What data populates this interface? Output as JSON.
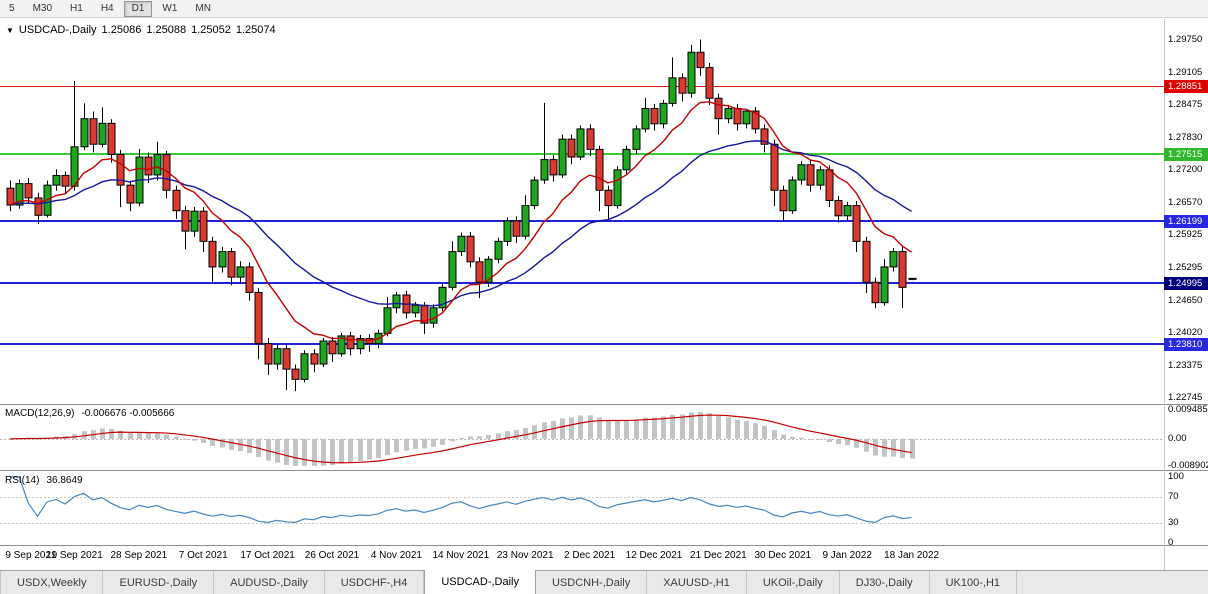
{
  "icons": {
    "chart_dropdown": "▼"
  },
  "toolbar": {
    "timeframes": [
      {
        "label": "5",
        "active": false
      },
      {
        "label": "M30",
        "active": false
      },
      {
        "label": "H1",
        "active": false
      },
      {
        "label": "H4",
        "active": false
      },
      {
        "label": "D1",
        "active": true
      },
      {
        "label": "W1",
        "active": false
      },
      {
        "label": "MN",
        "active": false
      }
    ]
  },
  "chart": {
    "symbol": "USDCAD-,Daily",
    "quote": {
      "open": "1.25086",
      "high": "1.25088",
      "low": "1.25052",
      "close": "1.25074"
    },
    "price_axis": {
      "ticks": [
        "1.29750",
        "1.29105",
        "1.28475",
        "1.27830",
        "1.27200",
        "1.26570",
        "1.25925",
        "1.25295",
        "1.24650",
        "1.24020",
        "1.23375",
        "1.22745"
      ]
    },
    "levels": [
      {
        "label": "1.28851",
        "line_color": "#ee1111",
        "badge_color": "#e00000",
        "width": 1
      },
      {
        "label": "1.27515",
        "line_color": "#35cc35",
        "badge_color": "#2eb82e",
        "width": 2
      },
      {
        "label": "1.26199",
        "line_color": "#2121d6",
        "badge_color": "#2828e0",
        "width": 2
      },
      {
        "label": "1.24995",
        "line_color": "#2121d6",
        "badge_color": "#00007f",
        "width": 2
      },
      {
        "label": "1.23810",
        "line_color": "#2121d6",
        "badge_color": "#2828e0",
        "width": 2
      }
    ],
    "colors": {
      "candle_up": "#1fa51f",
      "candle_down": "#dc3a30",
      "candle_outline": "#000000",
      "ma_fast": "#c40000",
      "ma_slow": "#16169a",
      "macd_histogram": "#c4c4c4",
      "macd_signal": "#c40000",
      "rsi_line": "#4787be"
    }
  },
  "macd": {
    "name": "MACD(12,26,9)",
    "values_text": "-0.006676 -0.005666",
    "axis": [
      "0.009485",
      "0.00",
      "-0.008902"
    ]
  },
  "rsi": {
    "name": "RSI(14)",
    "value": "36.8649",
    "axis": [
      "100",
      "70",
      "30",
      "0"
    ],
    "levels": [
      70,
      30
    ]
  },
  "dates": {
    "step": 7,
    "labels": [
      "9 Sep 2021",
      "19 Sep 2021",
      "28 Sep 2021",
      "7 Oct 2021",
      "17 Oct 2021",
      "26 Oct 2021",
      "4 Nov 2021",
      "14 Nov 2021",
      "23 Nov 2021",
      "2 Dec 2021",
      "12 Dec 2021",
      "21 Dec 2021",
      "30 Dec 2021",
      "9 Jan 2022",
      "18 Jan 2022"
    ]
  },
  "tabs": [
    {
      "label": "USDX,Weekly",
      "active": false
    },
    {
      "label": "EURUSD-,Daily",
      "active": false
    },
    {
      "label": "AUDUSD-,Daily",
      "active": false
    },
    {
      "label": "USDCHF-,H4",
      "active": false
    },
    {
      "label": "USDCAD-,Daily",
      "active": true
    },
    {
      "label": "USDCNH-,Daily",
      "active": false
    },
    {
      "label": "XAUUSD-,H1",
      "active": false
    },
    {
      "label": "UKOil-,Daily",
      "active": false
    },
    {
      "label": "DJ30-,Daily",
      "active": false
    },
    {
      "label": "UK100-,H1",
      "active": false
    }
  ],
  "chart_data": {
    "type": "candlestick",
    "symbol": "USDCAD",
    "timeframe": "Daily",
    "ylim": [
      1.22745,
      1.2975
    ],
    "hlines": [
      1.28851,
      1.27515,
      1.26199,
      1.24995,
      1.2381
    ],
    "overlays": [
      {
        "name": "ma-fast",
        "type": "ema",
        "period": 10,
        "color": "#c40000"
      },
      {
        "name": "ma-slow",
        "type": "ema",
        "period": 26,
        "color": "#16169a"
      }
    ],
    "indicators": [
      {
        "name": "MACD",
        "params": [
          12,
          26,
          9
        ],
        "current": [
          -0.006676,
          -0.005666
        ],
        "scale": [
          -0.008902,
          0.009485
        ]
      },
      {
        "name": "RSI",
        "params": [
          14
        ],
        "current": 36.8649,
        "scale": [
          0,
          100
        ]
      }
    ],
    "ohlc": [
      [
        1.2685,
        1.27,
        1.264,
        1.2652
      ],
      [
        1.2652,
        1.2702,
        1.2645,
        1.2694
      ],
      [
        1.2694,
        1.2705,
        1.2655,
        1.2666
      ],
      [
        1.2666,
        1.2676,
        1.2615,
        1.2632
      ],
      [
        1.2632,
        1.27,
        1.2628,
        1.2691
      ],
      [
        1.2691,
        1.2722,
        1.268,
        1.271
      ],
      [
        1.271,
        1.2718,
        1.2675,
        1.2689
      ],
      [
        1.2689,
        1.2895,
        1.268,
        1.2766
      ],
      [
        1.2766,
        1.2851,
        1.276,
        1.2821
      ],
      [
        1.2821,
        1.2835,
        1.2755,
        1.2771
      ],
      [
        1.2771,
        1.2843,
        1.2765,
        1.2812
      ],
      [
        1.2812,
        1.282,
        1.2735,
        1.2751
      ],
      [
        1.2751,
        1.276,
        1.2648,
        1.2691
      ],
      [
        1.2691,
        1.27,
        1.264,
        1.2656
      ],
      [
        1.2656,
        1.2762,
        1.265,
        1.2746
      ],
      [
        1.2746,
        1.2755,
        1.2695,
        1.2711
      ],
      [
        1.2711,
        1.2776,
        1.27,
        1.2751
      ],
      [
        1.2751,
        1.2758,
        1.2665,
        1.2681
      ],
      [
        1.2681,
        1.269,
        1.2625,
        1.2641
      ],
      [
        1.2641,
        1.265,
        1.2565,
        1.2601
      ],
      [
        1.2601,
        1.2648,
        1.259,
        1.264
      ],
      [
        1.264,
        1.2648,
        1.256,
        1.2581
      ],
      [
        1.2581,
        1.259,
        1.25,
        1.2531
      ],
      [
        1.2531,
        1.257,
        1.252,
        1.2561
      ],
      [
        1.2561,
        1.2568,
        1.2495,
        1.2511
      ],
      [
        1.2511,
        1.2542,
        1.25,
        1.2531
      ],
      [
        1.2531,
        1.254,
        1.2465,
        1.2481
      ],
      [
        1.2481,
        1.249,
        1.235,
        1.2381
      ],
      [
        1.2381,
        1.2392,
        1.232,
        1.2341
      ],
      [
        1.2341,
        1.238,
        1.233,
        1.2371
      ],
      [
        1.2371,
        1.2378,
        1.229,
        1.2331
      ],
      [
        1.2331,
        1.234,
        1.2288,
        1.2311
      ],
      [
        1.2311,
        1.2368,
        1.2305,
        1.2361
      ],
      [
        1.2361,
        1.237,
        1.2325,
        1.2341
      ],
      [
        1.2341,
        1.2392,
        1.2335,
        1.2386
      ],
      [
        1.2386,
        1.2394,
        1.2345,
        1.2361
      ],
      [
        1.2361,
        1.2402,
        1.2355,
        1.2396
      ],
      [
        1.2396,
        1.2404,
        1.2358,
        1.2371
      ],
      [
        1.2371,
        1.2398,
        1.236,
        1.2391
      ],
      [
        1.2391,
        1.2399,
        1.2365,
        1.2381
      ],
      [
        1.2381,
        1.2408,
        1.2372,
        1.2401
      ],
      [
        1.2401,
        1.2472,
        1.2395,
        1.2451
      ],
      [
        1.2451,
        1.2482,
        1.244,
        1.2476
      ],
      [
        1.2476,
        1.2484,
        1.243,
        1.2441
      ],
      [
        1.2441,
        1.2462,
        1.2432,
        1.2456
      ],
      [
        1.2456,
        1.2462,
        1.24,
        1.2421
      ],
      [
        1.2421,
        1.2458,
        1.2412,
        1.2451
      ],
      [
        1.2451,
        1.2498,
        1.2444,
        1.2491
      ],
      [
        1.2491,
        1.2581,
        1.2485,
        1.2561
      ],
      [
        1.2561,
        1.2598,
        1.2552,
        1.2591
      ],
      [
        1.2591,
        1.2599,
        1.253,
        1.2541
      ],
      [
        1.2541,
        1.255,
        1.247,
        1.2501
      ],
      [
        1.2501,
        1.2552,
        1.2492,
        1.2546
      ],
      [
        1.2546,
        1.2588,
        1.2538,
        1.2581
      ],
      [
        1.2581,
        1.2628,
        1.2572,
        1.2621
      ],
      [
        1.2621,
        1.263,
        1.2578,
        1.2591
      ],
      [
        1.2591,
        1.2671,
        1.2585,
        1.2651
      ],
      [
        1.2651,
        1.2708,
        1.2644,
        1.2701
      ],
      [
        1.2701,
        1.2852,
        1.2694,
        1.2741
      ],
      [
        1.2741,
        1.275,
        1.2698,
        1.2711
      ],
      [
        1.2711,
        1.279,
        1.2705,
        1.2781
      ],
      [
        1.2781,
        1.279,
        1.2732,
        1.2746
      ],
      [
        1.2746,
        1.2808,
        1.274,
        1.2801
      ],
      [
        1.2801,
        1.281,
        1.2748,
        1.2761
      ],
      [
        1.2761,
        1.2768,
        1.264,
        1.2681
      ],
      [
        1.2681,
        1.269,
        1.2625,
        1.2651
      ],
      [
        1.2651,
        1.2728,
        1.2645,
        1.2721
      ],
      [
        1.2721,
        1.2768,
        1.2712,
        1.2761
      ],
      [
        1.2761,
        1.2808,
        1.2752,
        1.2801
      ],
      [
        1.2801,
        1.2862,
        1.2794,
        1.2841
      ],
      [
        1.2841,
        1.285,
        1.2798,
        1.2811
      ],
      [
        1.2811,
        1.2858,
        1.2802,
        1.2851
      ],
      [
        1.2851,
        1.2941,
        1.2845,
        1.2901
      ],
      [
        1.2901,
        1.291,
        1.2855,
        1.2871
      ],
      [
        1.2871,
        1.2966,
        1.2862,
        1.2951
      ],
      [
        1.2951,
        1.2976,
        1.2905,
        1.2921
      ],
      [
        1.2921,
        1.293,
        1.2848,
        1.2861
      ],
      [
        1.2861,
        1.287,
        1.279,
        1.2821
      ],
      [
        1.2821,
        1.2848,
        1.2812,
        1.2841
      ],
      [
        1.2841,
        1.285,
        1.2798,
        1.2811
      ],
      [
        1.2811,
        1.284,
        1.2802,
        1.2836
      ],
      [
        1.2836,
        1.2844,
        1.2792,
        1.2801
      ],
      [
        1.2801,
        1.281,
        1.2755,
        1.2771
      ],
      [
        1.2771,
        1.278,
        1.265,
        1.2681
      ],
      [
        1.2681,
        1.269,
        1.262,
        1.2641
      ],
      [
        1.2641,
        1.2708,
        1.2635,
        1.2701
      ],
      [
        1.2701,
        1.2738,
        1.2692,
        1.2731
      ],
      [
        1.2731,
        1.274,
        1.2678,
        1.2691
      ],
      [
        1.2691,
        1.2728,
        1.2682,
        1.2721
      ],
      [
        1.2721,
        1.273,
        1.2648,
        1.2661
      ],
      [
        1.2661,
        1.267,
        1.2618,
        1.2631
      ],
      [
        1.2631,
        1.2658,
        1.2622,
        1.2651
      ],
      [
        1.2651,
        1.266,
        1.256,
        1.2581
      ],
      [
        1.2581,
        1.259,
        1.248,
        1.2501
      ],
      [
        1.2501,
        1.251,
        1.245,
        1.2461
      ],
      [
        1.2461,
        1.2546,
        1.2455,
        1.2531
      ],
      [
        1.2531,
        1.2568,
        1.2522,
        1.2561
      ],
      [
        1.2561,
        1.257,
        1.245,
        1.2491
      ],
      [
        1.25086,
        1.25088,
        1.25052,
        1.25074
      ]
    ]
  }
}
